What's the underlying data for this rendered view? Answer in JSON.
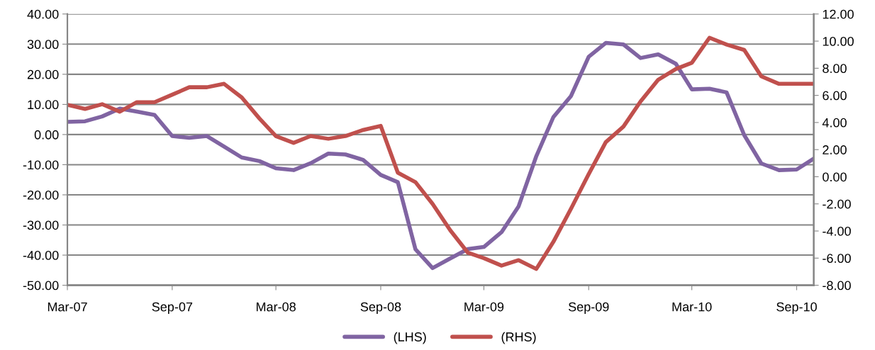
{
  "chart_data": {
    "type": "line",
    "x": [
      "2007-03",
      "2007-04",
      "2007-05",
      "2007-06",
      "2007-07",
      "2007-08",
      "2007-09",
      "2007-10",
      "2007-11",
      "2007-12",
      "2008-01",
      "2008-02",
      "2008-03",
      "2008-04",
      "2008-05",
      "2008-06",
      "2008-07",
      "2008-08",
      "2008-09",
      "2008-10",
      "2008-11",
      "2008-12",
      "2009-01",
      "2009-02",
      "2009-03",
      "2009-04",
      "2009-05",
      "2009-06",
      "2009-07",
      "2009-08",
      "2009-09",
      "2009-10",
      "2009-11",
      "2009-12",
      "2010-01",
      "2010-02",
      "2010-03",
      "2010-04",
      "2010-05",
      "2010-06",
      "2010-07",
      "2010-08",
      "2010-09",
      "2010-10"
    ],
    "series": [
      {
        "name": "(LHS)",
        "color": "#8064a2",
        "axis": "y",
        "values": [
          4.2,
          4.4,
          6.0,
          8.6,
          7.6,
          6.5,
          -0.5,
          -1.1,
          -0.5,
          -4.0,
          -7.6,
          -8.8,
          -11.2,
          -11.8,
          -9.5,
          -6.3,
          -6.6,
          -8.4,
          -13.4,
          -15.8,
          -38.1,
          -44.3,
          -41.1,
          -38.0,
          -37.3,
          -32.4,
          -23.8,
          -7.2,
          5.8,
          12.8,
          25.8,
          30.4,
          29.9,
          25.4,
          26.6,
          23.5,
          15.0,
          15.2,
          14.0,
          -0.2,
          -9.6,
          -11.8,
          -11.6,
          -8.0
        ]
      },
      {
        "name": "(RHS)",
        "color": "#c0504d",
        "axis": "y2",
        "values": [
          5.3,
          5.0,
          5.35,
          4.8,
          5.5,
          5.5,
          6.05,
          6.6,
          6.6,
          6.85,
          5.85,
          4.3,
          3.0,
          2.5,
          3.0,
          2.8,
          3.0,
          3.45,
          3.75,
          0.3,
          -0.4,
          -2.0,
          -3.95,
          -5.6,
          -6.0,
          -6.55,
          -6.15,
          -6.8,
          -4.8,
          -2.35,
          0.2,
          2.55,
          3.7,
          5.55,
          7.15,
          7.95,
          8.4,
          10.25,
          9.75,
          9.35,
          7.4,
          6.85,
          6.85,
          6.85
        ]
      }
    ],
    "xlim": [
      "2007-03",
      "2010-10"
    ],
    "xticks": [
      {
        "value": "2007-03",
        "label": "Mar-07"
      },
      {
        "value": "2007-09",
        "label": "Sep-07"
      },
      {
        "value": "2008-03",
        "label": "Mar-08"
      },
      {
        "value": "2008-09",
        "label": "Sep-08"
      },
      {
        "value": "2009-03",
        "label": "Mar-09"
      },
      {
        "value": "2009-09",
        "label": "Sep-09"
      },
      {
        "value": "2010-03",
        "label": "Mar-10"
      },
      {
        "value": "2010-09",
        "label": "Sep-10"
      }
    ],
    "ylim": [
      -50,
      40
    ],
    "yticks": [
      {
        "value": -50,
        "label": "-50.00"
      },
      {
        "value": -40,
        "label": "-40.00"
      },
      {
        "value": -30,
        "label": "-30.00"
      },
      {
        "value": -20,
        "label": "-20.00"
      },
      {
        "value": -10,
        "label": "-10.00"
      },
      {
        "value": 0,
        "label": "0.00"
      },
      {
        "value": 10,
        "label": "10.00"
      },
      {
        "value": 20,
        "label": "20.00"
      },
      {
        "value": 30,
        "label": "30.00"
      },
      {
        "value": 40,
        "label": "40.00"
      }
    ],
    "y2lim": [
      -8,
      12
    ],
    "y2ticks": [
      {
        "value": -8,
        "label": "-8.00"
      },
      {
        "value": -6,
        "label": "-6.00"
      },
      {
        "value": -4,
        "label": "-4.00"
      },
      {
        "value": -2,
        "label": "-2.00"
      },
      {
        "value": 0,
        "label": "0.00"
      },
      {
        "value": 2,
        "label": "2.00"
      },
      {
        "value": 4,
        "label": "4.00"
      },
      {
        "value": 6,
        "label": "6.00"
      },
      {
        "value": 8,
        "label": "8.00"
      },
      {
        "value": 10,
        "label": "10.00"
      },
      {
        "value": 12,
        "label": "12.00"
      }
    ],
    "grid": "y",
    "legend": "bottom",
    "marker": "none",
    "line_style": "solid"
  }
}
